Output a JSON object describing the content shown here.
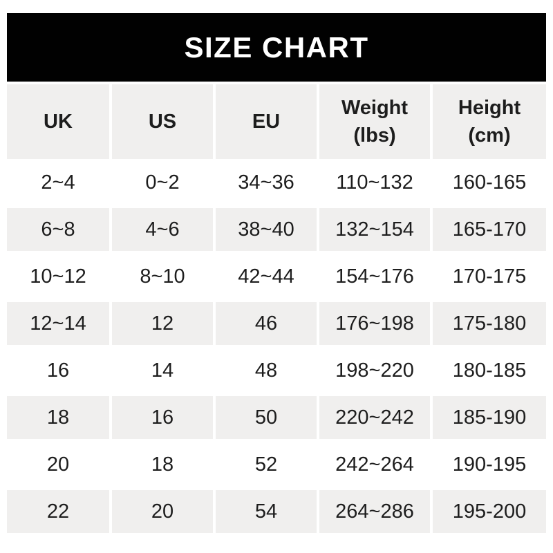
{
  "title": "SIZE CHART",
  "colors": {
    "title_bar_bg": "#010101",
    "title_text": "#ffffff",
    "stripe_bg": "#f0efee",
    "text": "#1d1d1d",
    "page_bg": "#ffffff"
  },
  "chart_data": {
    "type": "table",
    "title": "SIZE CHART",
    "columns": [
      {
        "label": "UK",
        "sub": ""
      },
      {
        "label": "US",
        "sub": ""
      },
      {
        "label": "EU",
        "sub": ""
      },
      {
        "label": "Weight",
        "sub": "(lbs)"
      },
      {
        "label": "Height",
        "sub": "(cm)"
      }
    ],
    "rows": [
      [
        "2~4",
        "0~2",
        "34~36",
        "110~132",
        "160-165"
      ],
      [
        "6~8",
        "4~6",
        "38~40",
        "132~154",
        "165-170"
      ],
      [
        "10~12",
        "8~10",
        "42~44",
        "154~176",
        "170-175"
      ],
      [
        "12~14",
        "12",
        "46",
        "176~198",
        "175-180"
      ],
      [
        "16",
        "14",
        "48",
        "198~220",
        "180-185"
      ],
      [
        "18",
        "16",
        "50",
        "220~242",
        "185-190"
      ],
      [
        "20",
        "18",
        "52",
        "242~264",
        "190-195"
      ],
      [
        "22",
        "20",
        "54",
        "264~286",
        "195-200"
      ]
    ],
    "layout": {
      "striped": true,
      "striped_row_indices": [
        1,
        3,
        5,
        7
      ],
      "header_bg": "#f0efee",
      "title_bar_bg": "#010101",
      "grid_gap_color": "#ffffff"
    }
  }
}
